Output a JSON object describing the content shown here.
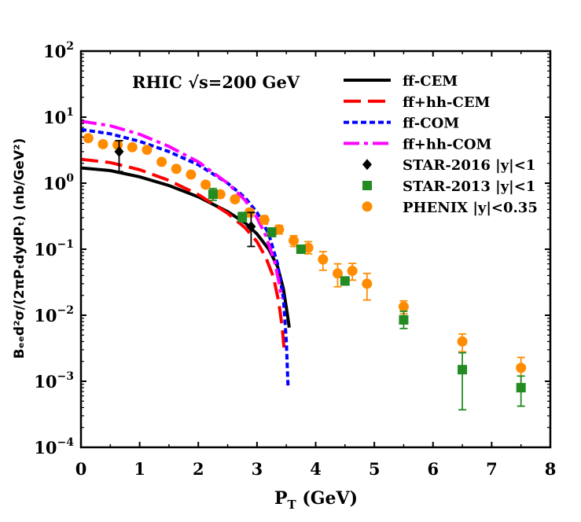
{
  "chart_data": {
    "type": "scatter",
    "annotation": "RHIC √s=200 GeV",
    "xlabel_main": "P",
    "xlabel_sub": "T",
    "xlabel_unit": " (GeV)",
    "ylabel": "Bₑₑd²σ/(2πPₜdydPₜ) (nb/GeV²)",
    "xlim": [
      0,
      8
    ],
    "ylim": [
      0.0001,
      100
    ],
    "yscale": "log",
    "grid": false,
    "legend_position": "top-right",
    "x_ticks": [
      "0",
      "1",
      "2",
      "3",
      "4",
      "5",
      "6",
      "7",
      "8"
    ],
    "y_ticks": [
      {
        "base": "10",
        "exp": "2",
        "value": 100
      },
      {
        "base": "10",
        "exp": "1",
        "value": 10
      },
      {
        "base": "10",
        "exp": "0",
        "value": 1
      },
      {
        "base": "10",
        "exp": "−1",
        "value": 0.1
      },
      {
        "base": "10",
        "exp": "−2",
        "value": 0.01
      },
      {
        "base": "10",
        "exp": "−3",
        "value": 0.001
      },
      {
        "base": "10",
        "exp": "−4",
        "value": 0.0001
      }
    ],
    "curves": [
      {
        "name": "ff-CEM",
        "color": "#000000",
        "dash": "solid",
        "x": [
          0,
          0.5,
          1.0,
          1.5,
          2.0,
          2.5,
          2.8,
          3.0,
          3.2,
          3.35,
          3.45,
          3.52,
          3.55
        ],
        "y": [
          1.7,
          1.55,
          1.25,
          0.92,
          0.62,
          0.37,
          0.25,
          0.17,
          0.1,
          0.055,
          0.025,
          0.01,
          0.0065
        ]
      },
      {
        "name": "ff+hh-CEM",
        "color": "#ff0000",
        "dash": "long",
        "x": [
          0,
          0.5,
          1.0,
          1.5,
          2.0,
          2.5,
          2.8,
          3.0,
          3.15,
          3.28,
          3.37,
          3.43,
          3.47
        ],
        "y": [
          2.3,
          2.05,
          1.6,
          1.1,
          0.67,
          0.35,
          0.21,
          0.13,
          0.075,
          0.038,
          0.016,
          0.0065,
          0.0026
        ]
      },
      {
        "name": "ff-COM",
        "color": "#0000ff",
        "dash": "short",
        "x": [
          0,
          0.5,
          1.0,
          1.5,
          2.0,
          2.5,
          2.8,
          3.0,
          3.2,
          3.35,
          3.45,
          3.5,
          3.53
        ],
        "y": [
          6.5,
          5.6,
          4.3,
          3.0,
          1.9,
          1.0,
          0.6,
          0.36,
          0.17,
          0.06,
          0.018,
          0.004,
          0.0008
        ]
      },
      {
        "name": "ff+hh-COM",
        "color": "#ff00ff",
        "dash": "dashdot",
        "x": [
          0,
          0.5,
          1.0,
          1.5,
          2.0,
          2.5,
          2.8,
          3.0,
          3.15,
          3.3,
          3.38,
          3.42
        ],
        "y": [
          8.7,
          7.4,
          5.5,
          3.6,
          2.1,
          1.0,
          0.55,
          0.3,
          0.16,
          0.065,
          0.03,
          0.018
        ]
      }
    ],
    "series": [
      {
        "name": "STAR-2016 |y|<1",
        "marker": "diamond",
        "color": "#000000",
        "points": [
          {
            "x": 0.65,
            "y": 3.0,
            "lo": 1.5,
            "hi": 4.4
          },
          {
            "x": 2.9,
            "y": 0.22,
            "lo": 0.11,
            "hi": 0.36
          }
        ]
      },
      {
        "name": "STAR-2013 |y|<1",
        "marker": "square",
        "color": "#228b22",
        "points": [
          {
            "x": 2.25,
            "y": 0.68,
            "lo": 0.55,
            "hi": 0.83
          },
          {
            "x": 2.75,
            "y": 0.31,
            "lo": 0.26,
            "hi": 0.36
          },
          {
            "x": 3.25,
            "y": 0.18,
            "lo": 0.155,
            "hi": 0.21
          },
          {
            "x": 3.75,
            "y": 0.1,
            "lo": 0.088,
            "hi": 0.115
          },
          {
            "x": 4.5,
            "y": 0.033,
            "lo": 0.029,
            "hi": 0.038
          },
          {
            "x": 5.5,
            "y": 0.0085,
            "lo": 0.0063,
            "hi": 0.0115
          },
          {
            "x": 6.5,
            "y": 0.0015,
            "lo": 0.00037,
            "hi": 0.0027
          },
          {
            "x": 7.5,
            "y": 0.0008,
            "lo": 0.00042,
            "hi": 0.0012
          }
        ]
      },
      {
        "name": "PHENIX |y|<0.35",
        "marker": "circle",
        "color": "#ff8c00",
        "points": [
          {
            "x": 0.125,
            "y": 4.8,
            "lo": 4.4,
            "hi": 5.2
          },
          {
            "x": 0.375,
            "y": 3.9,
            "lo": 3.6,
            "hi": 4.2
          },
          {
            "x": 0.625,
            "y": 3.8,
            "lo": 3.5,
            "hi": 4.1
          },
          {
            "x": 0.875,
            "y": 3.5,
            "lo": 3.25,
            "hi": 3.75
          },
          {
            "x": 1.125,
            "y": 3.2,
            "lo": 3.0,
            "hi": 3.4
          },
          {
            "x": 1.375,
            "y": 2.1,
            "lo": 1.95,
            "hi": 2.25
          },
          {
            "x": 1.625,
            "y": 1.65,
            "lo": 1.55,
            "hi": 1.75
          },
          {
            "x": 1.875,
            "y": 1.35,
            "lo": 1.25,
            "hi": 1.45
          },
          {
            "x": 2.125,
            "y": 0.95,
            "lo": 0.88,
            "hi": 1.02
          },
          {
            "x": 2.375,
            "y": 0.68,
            "lo": 0.62,
            "hi": 0.74
          },
          {
            "x": 2.625,
            "y": 0.57,
            "lo": 0.52,
            "hi": 0.62
          },
          {
            "x": 2.875,
            "y": 0.36,
            "lo": 0.31,
            "hi": 0.41
          },
          {
            "x": 3.125,
            "y": 0.28,
            "lo": 0.24,
            "hi": 0.32
          },
          {
            "x": 3.375,
            "y": 0.2,
            "lo": 0.17,
            "hi": 0.23
          },
          {
            "x": 3.625,
            "y": 0.135,
            "lo": 0.11,
            "hi": 0.16
          },
          {
            "x": 3.875,
            "y": 0.105,
            "lo": 0.085,
            "hi": 0.13
          },
          {
            "x": 4.125,
            "y": 0.07,
            "lo": 0.048,
            "hi": 0.092
          },
          {
            "x": 4.375,
            "y": 0.043,
            "lo": 0.027,
            "hi": 0.06
          },
          {
            "x": 4.625,
            "y": 0.047,
            "lo": 0.034,
            "hi": 0.061
          },
          {
            "x": 4.875,
            "y": 0.03,
            "lo": 0.017,
            "hi": 0.043
          },
          {
            "x": 5.5,
            "y": 0.0135,
            "lo": 0.0105,
            "hi": 0.0165
          },
          {
            "x": 6.5,
            "y": 0.004,
            "lo": 0.0028,
            "hi": 0.0052
          },
          {
            "x": 7.5,
            "y": 0.0016,
            "lo": 0.0009,
            "hi": 0.0023
          }
        ]
      }
    ]
  }
}
